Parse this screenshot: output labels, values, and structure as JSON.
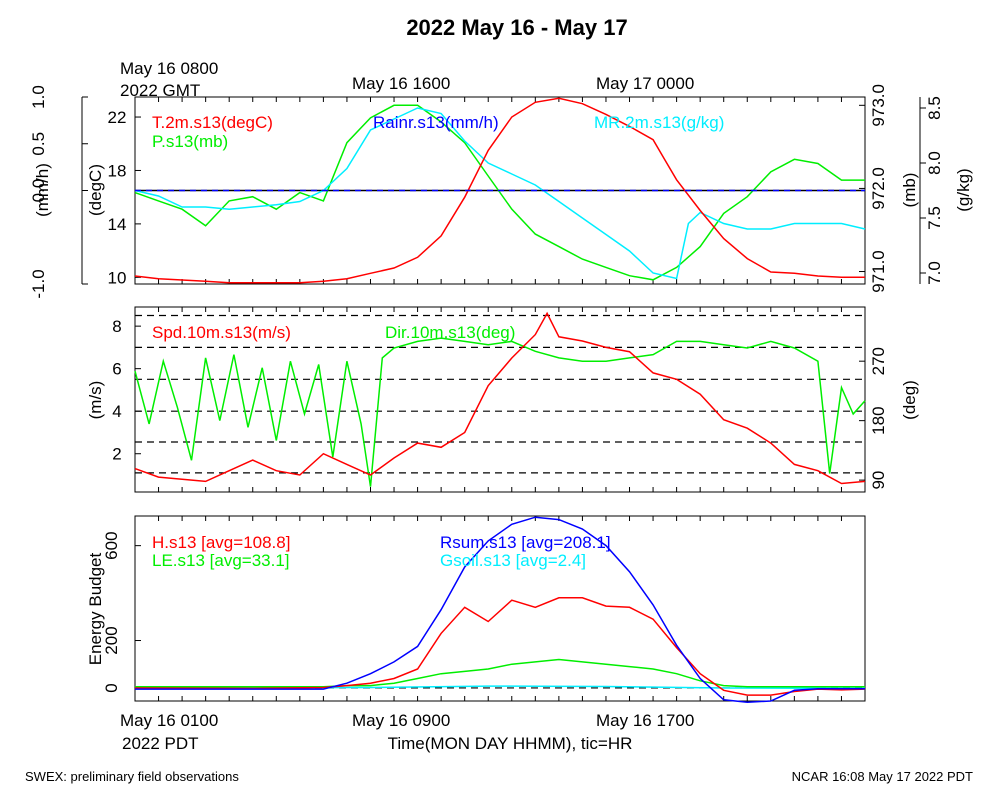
{
  "title": "2022 May 16 - May 17",
  "top_time_labels": {
    "start_line1": "May 16 0800",
    "start_line2": "2022 GMT",
    "mid": "May 16 1600",
    "end": "May 17 0000"
  },
  "bottom_time_labels": {
    "start_line1": "May 16 0100",
    "start_line2": "2022 PDT",
    "mid": "May 16 0900",
    "end": "May 16 1700",
    "xlabel": "Time(MON DAY HHMM), tic=HR"
  },
  "footer": {
    "left": "SWEX: preliminary field observations",
    "right": "NCAR 16:08 May 17 2022 PDT"
  },
  "colors": {
    "red": "#ff0000",
    "green": "#00ee00",
    "blue": "#0000ff",
    "cyan": "#00eeff",
    "black": "#000000"
  },
  "chart_data": [
    {
      "type": "line",
      "panel": "top",
      "x_unit": "hours after May 16 0100 PDT",
      "xlim": [
        0,
        31
      ],
      "axes": {
        "rain": {
          "label": "(mm/h)",
          "ylim": [
            -1.0,
            1.0
          ],
          "ticks": [
            "-1.0",
            "0.0",
            "0.5",
            "1.0"
          ],
          "tick_values": [
            -1.0,
            0.0,
            0.5,
            1.0
          ]
        },
        "temp": {
          "label": "(degC)",
          "ylim": [
            9.5,
            23.5
          ],
          "ticks": [
            "10",
            "14",
            "18",
            "22"
          ],
          "tick_values": [
            10,
            14,
            18,
            22
          ]
        },
        "pres": {
          "label": "(mb)",
          "ylim": [
            970.85,
            973.1
          ],
          "ticks": [
            "971.0",
            "972.0",
            "973.0"
          ],
          "tick_values": [
            971.0,
            972.0,
            973.0
          ]
        },
        "mr": {
          "label": "(g/kg)",
          "ylim": [
            6.9,
            8.6
          ],
          "ticks": [
            "7.0",
            "7.5",
            "8.0",
            "8.5"
          ],
          "tick_values": [
            7.0,
            7.5,
            8.0,
            8.5
          ]
        }
      },
      "series": [
        {
          "name": "T.2m.s13(degC)",
          "axis": "temp",
          "color": "#ff0000",
          "x": [
            0,
            1,
            2,
            3,
            4,
            5,
            6,
            7,
            8,
            9,
            10,
            11,
            12,
            13,
            14,
            15,
            16,
            17,
            18,
            19,
            20,
            21,
            22,
            22.5,
            23,
            24,
            25,
            26,
            27,
            28,
            29,
            30,
            31
          ],
          "y": [
            10.1,
            9.9,
            9.8,
            9.7,
            9.6,
            9.6,
            9.6,
            9.6,
            9.7,
            9.9,
            10.3,
            10.7,
            11.5,
            13.1,
            16.0,
            19.5,
            22.0,
            23.1,
            23.4,
            23.0,
            22.2,
            21.3,
            20.3,
            18.8,
            17.3,
            15.0,
            12.9,
            11.4,
            10.4,
            10.3,
            10.1,
            10.0,
            10.0
          ]
        },
        {
          "name": "P.s13(mb)",
          "axis": "pres",
          "color": "#00ee00",
          "x": [
            0,
            1,
            2,
            3,
            4,
            5,
            6,
            7,
            8,
            9,
            10,
            11,
            12,
            13,
            14,
            15,
            16,
            17,
            18,
            19,
            20,
            21,
            22,
            23,
            24,
            25,
            26,
            27,
            28,
            29,
            30,
            31
          ],
          "y": [
            971.95,
            971.85,
            971.75,
            971.55,
            971.85,
            971.9,
            971.75,
            971.95,
            971.85,
            972.55,
            972.85,
            973.0,
            973.0,
            972.8,
            972.55,
            972.15,
            971.75,
            971.45,
            971.3,
            971.15,
            971.05,
            970.95,
            970.9,
            971.05,
            971.3,
            971.7,
            971.9,
            972.2,
            972.35,
            972.3,
            972.1,
            972.1
          ]
        },
        {
          "name": "Rainr.s13(mm/h)",
          "axis": "rain",
          "color": "#0000ff",
          "x": [
            0,
            31
          ],
          "y": [
            0.0,
            0.0
          ]
        },
        {
          "name": "MR.2m.s13(g/kg)",
          "axis": "mr",
          "color": "#00eeff",
          "x": [
            0,
            1,
            2,
            3,
            4,
            5,
            6,
            7,
            8,
            9,
            10,
            11,
            12,
            13,
            14,
            15,
            16,
            17,
            18,
            19,
            20,
            21,
            22,
            23,
            23.5,
            24,
            25,
            26,
            27,
            28,
            29,
            30,
            31
          ],
          "y": [
            7.75,
            7.7,
            7.6,
            7.6,
            7.58,
            7.6,
            7.62,
            7.65,
            7.75,
            7.95,
            8.3,
            8.4,
            8.5,
            8.45,
            8.2,
            8.0,
            7.9,
            7.8,
            7.65,
            7.5,
            7.35,
            7.2,
            7.0,
            6.95,
            7.45,
            7.55,
            7.45,
            7.4,
            7.4,
            7.45,
            7.45,
            7.45,
            7.4
          ]
        }
      ],
      "reference_line": {
        "value": 0.0,
        "axis": "rain",
        "style": "dashed"
      }
    },
    {
      "type": "line",
      "panel": "middle",
      "x_unit": "hours after May 16 0100 PDT",
      "xlim": [
        0,
        31
      ],
      "axes": {
        "spd": {
          "label": "(m/s)",
          "ylim": [
            0.2,
            8.9
          ],
          "ticks": [
            "2",
            "4",
            "6",
            "8"
          ],
          "tick_values": [
            2,
            4,
            6,
            8
          ]
        },
        "dir": {
          "label": "(deg)",
          "ylim": [
            72,
            352
          ],
          "ticks": [
            "90",
            "180",
            "270"
          ],
          "tick_values": [
            90,
            180,
            270
          ]
        }
      },
      "series": [
        {
          "name": "Spd.10m.s13(m/s)",
          "axis": "spd",
          "color": "#ff0000",
          "x": [
            0,
            1,
            2,
            3,
            4,
            5,
            6,
            7,
            8,
            9,
            10,
            11,
            12,
            13,
            14,
            15,
            16,
            17,
            17.5,
            18,
            19,
            20,
            21,
            22,
            23,
            24,
            25,
            26,
            27,
            28,
            29,
            30,
            31
          ],
          "y": [
            1.3,
            0.9,
            0.8,
            0.7,
            1.2,
            1.7,
            1.2,
            1.0,
            2.0,
            1.5,
            1.0,
            1.8,
            2.5,
            2.3,
            3.0,
            5.2,
            6.5,
            7.6,
            8.6,
            7.5,
            7.3,
            7.0,
            6.8,
            5.8,
            5.5,
            4.8,
            3.6,
            3.2,
            2.5,
            1.5,
            1.2,
            0.6,
            0.7
          ]
        },
        {
          "name": "Dir.10m.s13(deg)",
          "axis": "dir",
          "color": "#00ee00",
          "x": [
            0,
            0.6,
            1.2,
            1.8,
            2.4,
            3,
            3.6,
            4.2,
            4.8,
            5.4,
            6,
            6.6,
            7.2,
            7.8,
            8.4,
            9,
            9.6,
            10,
            10.5,
            11,
            12,
            13,
            14,
            15,
            16,
            17,
            18,
            19,
            20,
            21,
            22,
            23,
            24,
            25,
            26,
            27,
            28,
            29,
            29.5,
            30,
            30.5,
            31
          ],
          "y": [
            255,
            175,
            270,
            200,
            120,
            275,
            180,
            280,
            170,
            260,
            150,
            270,
            190,
            265,
            125,
            270,
            175,
            80,
            275,
            290,
            300,
            305,
            300,
            295,
            300,
            285,
            275,
            270,
            270,
            275,
            280,
            300,
            300,
            295,
            290,
            300,
            290,
            270,
            100,
            230,
            190,
            210
          ]
        }
      ],
      "reference_lines": [
        {
          "value": 8.5,
          "axis": "spd",
          "style": "dashed"
        },
        {
          "value": 7.0,
          "axis": "spd",
          "style": "dashed"
        },
        {
          "value": 5.5,
          "axis": "spd",
          "style": "dashed"
        },
        {
          "value": 4.0,
          "axis": "spd",
          "style": "dashed"
        },
        {
          "value": 2.55,
          "axis": "spd",
          "style": "dashed"
        },
        {
          "value": 1.1,
          "axis": "spd",
          "style": "dashed"
        }
      ]
    },
    {
      "type": "line",
      "panel": "bottom",
      "x_unit": "hours after May 16 0100 PDT",
      "xlim": [
        0,
        31
      ],
      "ylabel": "Energy Budget",
      "ylim": [
        -55,
        725
      ],
      "yticks": [
        "0",
        "200",
        "600"
      ],
      "ytick_values": [
        0,
        200,
        600
      ],
      "series": [
        {
          "name": "H.s13 [avg=108.8]",
          "color": "#ff0000",
          "x": [
            0,
            5,
            8,
            9,
            10,
            11,
            12,
            13,
            14,
            15,
            16,
            17,
            18,
            19,
            20,
            21,
            22,
            23,
            24,
            25,
            26,
            27,
            28,
            29,
            30,
            31
          ],
          "y": [
            0,
            -2,
            2,
            10,
            20,
            40,
            80,
            230,
            340,
            280,
            370,
            340,
            380,
            380,
            345,
            340,
            290,
            170,
            60,
            -10,
            -30,
            -30,
            -15,
            -5,
            -8,
            -5
          ]
        },
        {
          "name": "LE.s13 [avg=33.1]",
          "color": "#00ee00",
          "x": [
            0,
            5,
            8,
            9,
            10,
            11,
            12,
            13,
            14,
            15,
            16,
            17,
            18,
            19,
            20,
            21,
            22,
            23,
            24,
            25,
            26,
            27,
            28,
            29,
            30,
            31
          ],
          "y": [
            5,
            5,
            5,
            10,
            10,
            20,
            40,
            60,
            70,
            80,
            100,
            110,
            120,
            110,
            100,
            90,
            80,
            60,
            30,
            10,
            5,
            5,
            5,
            5,
            5,
            5
          ]
        },
        {
          "name": "Rsum.s13 [avg=208.1]",
          "color": "#0000ff",
          "x": [
            0,
            6,
            8,
            9,
            10,
            11,
            12,
            13,
            14,
            15,
            16,
            17,
            18,
            19,
            20,
            21,
            22,
            23,
            24,
            25,
            26,
            27,
            28,
            29,
            30,
            31
          ],
          "y": [
            -5,
            -5,
            -5,
            20,
            60,
            110,
            175,
            330,
            510,
            620,
            690,
            720,
            710,
            670,
            600,
            490,
            350,
            180,
            40,
            -50,
            -60,
            -55,
            -10,
            -3,
            -3,
            -3
          ]
        },
        {
          "name": "Gsoil.s13 [avg=2.4]",
          "color": "#00eeff",
          "x": [
            0,
            10,
            15,
            20,
            25,
            31
          ],
          "y": [
            0,
            2,
            8,
            6,
            0,
            -2
          ]
        }
      ],
      "reference_line": {
        "value": 0,
        "style": "dashed"
      }
    }
  ]
}
